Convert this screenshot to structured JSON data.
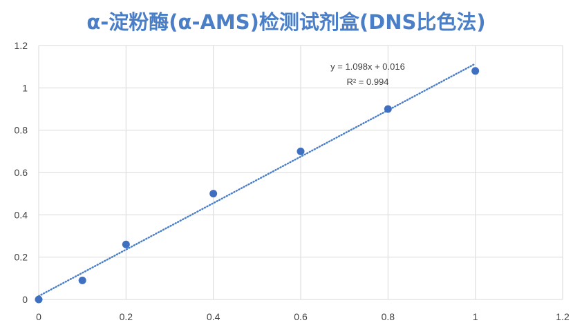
{
  "chart_data": {
    "type": "scatter",
    "title": "α-淀粉酶(α-AMS)检测试剂盒(DNS比色法)",
    "xlabel": "",
    "ylabel": "",
    "xlim": [
      0,
      1.2
    ],
    "ylim": [
      0,
      1.2
    ],
    "x_ticks": [
      "0",
      "0.2",
      "0.4",
      "0.6",
      "0.8",
      "1",
      "1.2"
    ],
    "y_ticks": [
      "0",
      "0.2",
      "0.4",
      "0.6",
      "0.8",
      "1",
      "1.2"
    ],
    "grid": true,
    "legend": "none",
    "series": [
      {
        "x": [
          0,
          0.1,
          0.2,
          0.4,
          0.6,
          0.8,
          1.0
        ],
        "y": [
          0,
          0.09,
          0.26,
          0.5,
          0.7,
          0.9,
          1.08
        ]
      }
    ],
    "trendline": {
      "type": "linear",
      "style": "dotted",
      "slope": 1.098,
      "intercept": 0.016,
      "x_range": [
        0,
        1.0
      ],
      "equation": "y = 1.098x + 0.016",
      "r_squared": "R² = 0.994"
    },
    "colors": {
      "title": "#4a7fc8",
      "marker": "#3f6fc0",
      "trendline": "#4a7fc8",
      "grid": "#d9d9d9",
      "text": "#404040"
    }
  }
}
